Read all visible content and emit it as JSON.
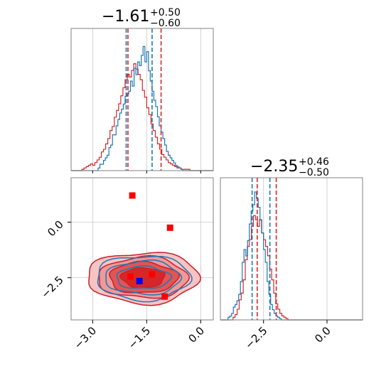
{
  "chart_data": {
    "type": "corner",
    "colors": {
      "blue": "#1f77b4",
      "red": "#d62728",
      "red_fill": "#f4a3a3",
      "red_dark": "#c8202a",
      "frame": "#808080",
      "grid": "#c8c8c8"
    },
    "param1": {
      "title_main": "−1.61",
      "title_sup": "+0.50",
      "title_sub": "−0.60",
      "xlim": [
        -3.6,
        0.35
      ],
      "ticks": [
        -3.0,
        -1.5,
        0.0
      ],
      "tick_labels": [
        "−3.0",
        "−1.5",
        "0.0"
      ],
      "blue_quantiles": [
        -2.07,
        -1.35
      ],
      "red_quantiles": [
        -2.02,
        -1.1
      ],
      "blue_hist": {
        "x0": -2.85,
        "bin": 0.05,
        "heights": [
          0.02,
          0.05,
          0.05,
          0.08,
          0.1,
          0.12,
          0.18,
          0.2,
          0.28,
          0.28,
          0.35,
          0.4,
          0.45,
          0.48,
          0.52,
          0.58,
          0.6,
          0.62,
          0.7,
          0.66,
          0.8,
          0.75,
          0.85,
          0.82,
          0.9,
          0.97,
          0.85,
          0.93,
          0.78,
          0.7,
          0.62,
          0.55,
          0.5,
          0.42,
          0.35,
          0.3,
          0.25,
          0.2,
          0.15,
          0.12,
          0.1,
          0.08,
          0.06,
          0.04,
          0.03,
          0.02,
          0.01
        ]
      },
      "red_hist": {
        "x0": -3.3,
        "bin": 0.06,
        "heights": [
          0.01,
          0.02,
          0.03,
          0.04,
          0.05,
          0.04,
          0.06,
          0.08,
          0.1,
          0.14,
          0.16,
          0.2,
          0.24,
          0.3,
          0.33,
          0.4,
          0.45,
          0.5,
          0.56,
          0.62,
          0.68,
          0.72,
          0.7,
          0.75,
          0.8,
          0.76,
          0.72,
          0.68,
          0.6,
          0.55,
          0.47,
          0.42,
          0.35,
          0.3,
          0.25,
          0.2,
          0.16,
          0.12,
          0.1,
          0.08,
          0.06,
          0.05,
          0.04,
          0.03,
          0.02,
          0.02,
          0.01,
          0.01,
          0.01,
          0.01
        ]
      }
    },
    "param2": {
      "title_main": "−2.35",
      "title_sup": "+0.46",
      "title_sub": "−0.50",
      "xlim": [
        -4.2,
        1.4
      ],
      "ticks": [
        -2.5,
        0.0
      ],
      "tick_labels": [
        "−2.5",
        "0.0"
      ],
      "blue_quantiles": [
        -2.95,
        -2.25
      ],
      "red_quantiles": [
        -2.75,
        -2.0
      ],
      "blue_hist": {
        "x0": -3.9,
        "bin": 0.07,
        "heights": [
          0.02,
          0.03,
          0.05,
          0.1,
          0.12,
          0.15,
          0.2,
          0.3,
          0.45,
          0.55,
          0.5,
          0.62,
          0.75,
          0.85,
          0.9,
          1.0,
          0.95,
          0.88,
          0.78,
          0.68,
          0.55,
          0.45,
          0.3,
          0.2,
          0.12,
          0.08,
          0.05,
          0.03,
          0.02,
          0.01
        ]
      },
      "red_hist": {
        "x0": -3.7,
        "bin": 0.08,
        "heights": [
          0.02,
          0.04,
          0.08,
          0.15,
          0.2,
          0.3,
          0.45,
          0.55,
          0.6,
          0.7,
          0.78,
          0.75,
          0.7,
          0.75,
          0.65,
          0.6,
          0.55,
          0.48,
          0.38,
          0.3,
          0.2,
          0.12,
          0.08,
          0.05,
          0.03,
          0.02,
          0.01
        ]
      }
    },
    "joint": {
      "xlim": [
        -3.6,
        0.35
      ],
      "ylim": [
        -4.4,
        2.0
      ],
      "yticks": [
        0.0,
        -2.5
      ],
      "ytick_labels": [
        "0.0",
        "−2.5"
      ],
      "red_points": [
        [
          -1.9,
          1.2
        ],
        [
          -0.85,
          -0.25
        ],
        [
          -1.0,
          -3.35
        ],
        [
          -1.35,
          -2.35
        ],
        [
          -1.95,
          -2.45
        ]
      ],
      "blue_points": [
        [
          -1.7,
          -2.65
        ]
      ],
      "center": [
        -1.6,
        -2.5
      ],
      "red_levels": [
        [
          1.55,
          1.15
        ],
        [
          1.25,
          0.92
        ],
        [
          0.95,
          0.7
        ],
        [
          0.6,
          0.45
        ]
      ],
      "blue_levels": [
        [
          1.3,
          1.0
        ],
        [
          1.05,
          0.75
        ],
        [
          0.75,
          0.5
        ]
      ]
    }
  }
}
